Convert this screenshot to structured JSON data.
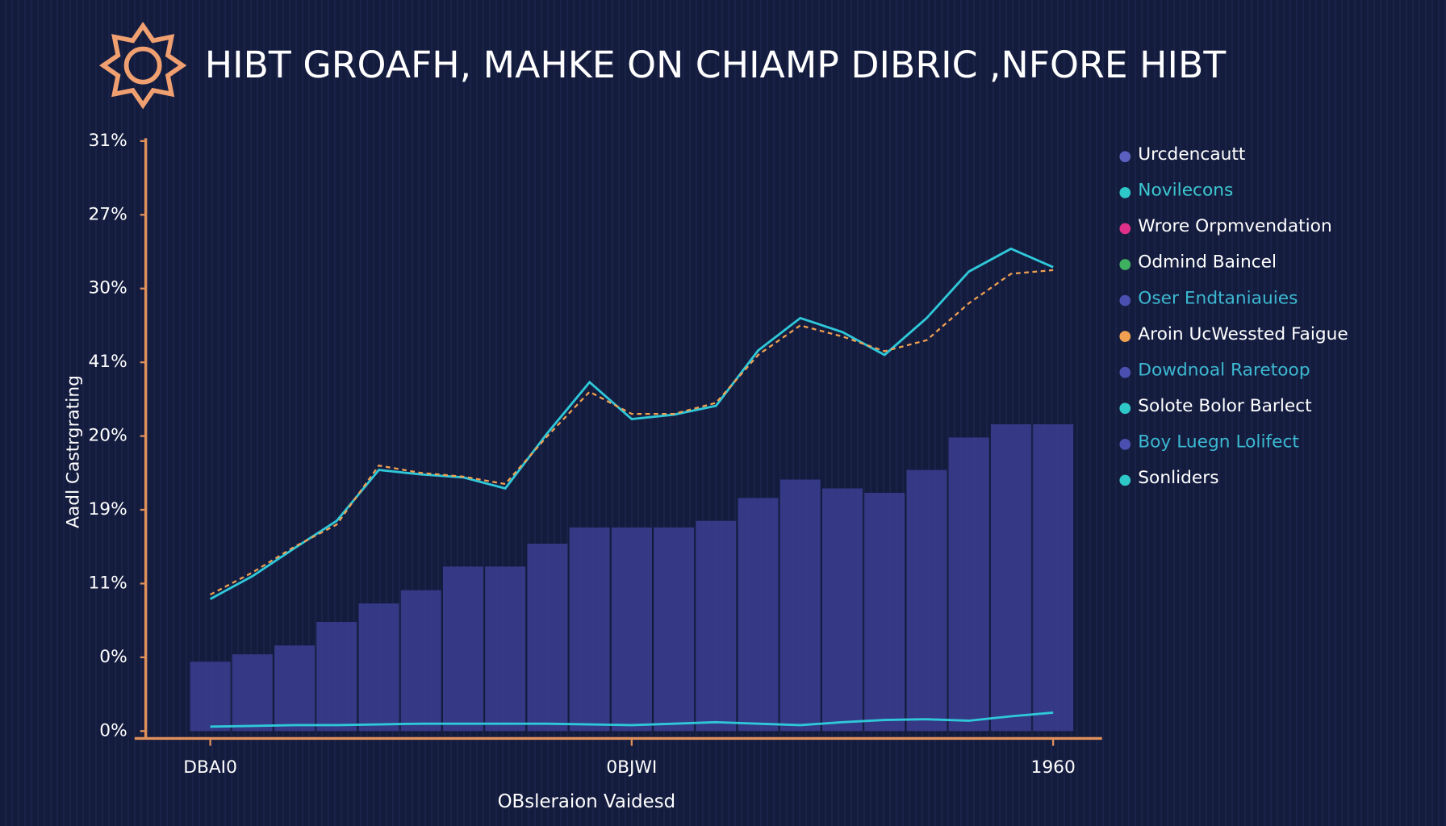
{
  "chart_data": {
    "type": "line",
    "title": "HIBT GROAFH, MAHKE ON CHIAMP DIBRIC ,NFORE HIBT",
    "y_label": "Aadl Castrgrating",
    "x_label": "OBsleraion Vaidesd",
    "categories": [
      "DBAI0",
      null,
      null,
      null,
      null,
      null,
      null,
      null,
      null,
      null,
      "0BJWI",
      null,
      null,
      null,
      null,
      null,
      null,
      null,
      null,
      null,
      "1960"
    ],
    "ylim": [
      -0.1,
      8.2
    ],
    "yticks": [
      {
        "value": 0,
        "label": "0%"
      },
      {
        "value": 1,
        "label": "0%"
      },
      {
        "value": 2,
        "label": "11%"
      },
      {
        "value": 3,
        "label": "19%"
      },
      {
        "value": 4,
        "label": "20%"
      },
      {
        "value": 5,
        "label": "41%"
      },
      {
        "value": 6,
        "label": "30%"
      },
      {
        "value": 7,
        "label": "27%"
      },
      {
        "value": 8,
        "label": "31%"
      }
    ],
    "axis_color": "#e0905a",
    "series": [
      {
        "kind": "bar",
        "color": "#3b3d92",
        "values": [
          0.94,
          1.04,
          1.16,
          1.48,
          1.73,
          1.91,
          2.23,
          2.23,
          2.54,
          2.76,
          2.76,
          2.76,
          2.85,
          3.16,
          3.41,
          3.29,
          3.23,
          3.54,
          3.98,
          4.16,
          4.16
        ]
      },
      {
        "kind": "line",
        "color": "#2fc8d8",
        "values": [
          1.79,
          2.1,
          2.48,
          2.85,
          3.54,
          3.48,
          3.44,
          3.29,
          4.04,
          4.73,
          4.23,
          4.29,
          4.41,
          5.16,
          5.6,
          5.41,
          5.1,
          5.6,
          6.23,
          6.54,
          6.29
        ]
      },
      {
        "kind": "dashed",
        "color": "#f0a050",
        "values": [
          1.85,
          2.15,
          2.5,
          2.8,
          3.6,
          3.5,
          3.45,
          3.35,
          4.0,
          4.6,
          4.3,
          4.3,
          4.45,
          5.1,
          5.5,
          5.35,
          5.15,
          5.3,
          5.8,
          6.2,
          6.25
        ]
      },
      {
        "kind": "line",
        "color": "#2fc8d8",
        "values": [
          0.06,
          0.07,
          0.08,
          0.08,
          0.09,
          0.1,
          0.1,
          0.1,
          0.1,
          0.09,
          0.08,
          0.1,
          0.12,
          0.1,
          0.08,
          0.12,
          0.15,
          0.16,
          0.14,
          0.2,
          0.25
        ]
      }
    ],
    "legend": [
      {
        "name": "Urcdencautt",
        "color": "#5a5fc0",
        "text_color": "#ffffff"
      },
      {
        "name": "Novilecons",
        "color": "#2fc8c8",
        "text_color": "#3cc8d0"
      },
      {
        "name": "Wrore Orpmvendation",
        "color": "#e0308a",
        "text_color": "#ffffff"
      },
      {
        "name": "Odmind Baincel",
        "color": "#3fb060",
        "text_color": "#ffffff"
      },
      {
        "name": "Oser Endtaniauies",
        "color": "#4a50b0",
        "text_color": "#3cb8d0"
      },
      {
        "name": "Aroin UcWessted Faigue",
        "color": "#f0a050",
        "text_color": "#ffffff"
      },
      {
        "name": "Dowdnoal Raretoop",
        "color": "#4a50b0",
        "text_color": "#3cb8d0"
      },
      {
        "name": "Solote Bolor Barlect",
        "color": "#2fc8c8",
        "text_color": "#ffffff"
      },
      {
        "name": "Boy Luegn Lolifect",
        "color": "#4a50b0",
        "text_color": "#3cb8d0"
      },
      {
        "name": "Sonliders",
        "color": "#2fc8c8",
        "text_color": "#ffffff"
      }
    ]
  }
}
